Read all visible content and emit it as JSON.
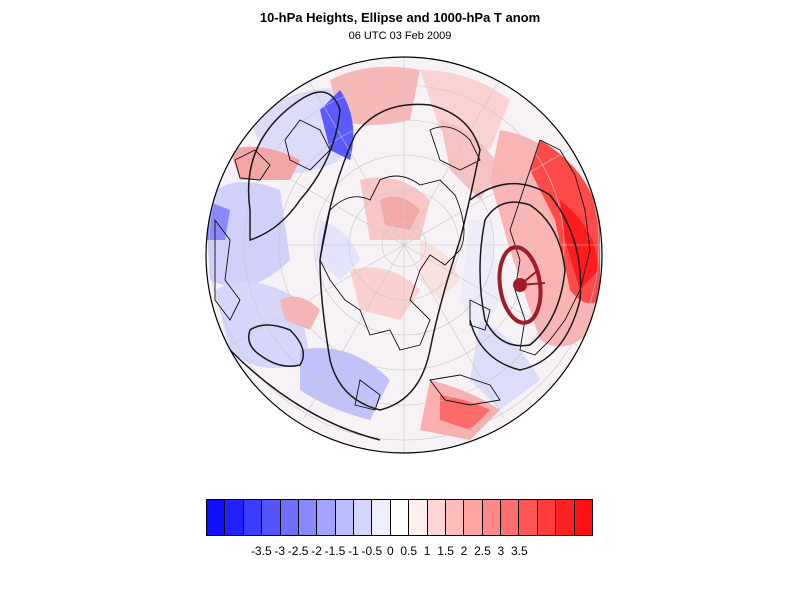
{
  "title": "10-hPa Heights, Ellipse and 1000-hPa T anom",
  "subtitle": "06 UTC 03 Feb 2009",
  "colorbar": {
    "labels": [
      "-3.5",
      "-3",
      "-2.5",
      "-2",
      "-1.5",
      "-1",
      "-0.5",
      "0",
      "0.5",
      "1",
      "1.5",
      "2",
      "2.5",
      "3",
      "3.5"
    ],
    "colors": [
      "#1010ff",
      "#2222ff",
      "#3c3cff",
      "#5555ff",
      "#6f6fff",
      "#8888ff",
      "#a2a2ff",
      "#bbbbff",
      "#d5d5ff",
      "#eeeeff",
      "#ffffff",
      "#ffeeee",
      "#ffd5d5",
      "#ffbbbb",
      "#ffa2a2",
      "#ff8888",
      "#ff6f6f",
      "#ff5555",
      "#ff3c3c",
      "#ff2222",
      "#ff1010"
    ]
  },
  "map": {
    "projection": "orthographic-north-polar",
    "field": "1000-hPa temperature anomaly",
    "contours": "10-hPa geopotential heights",
    "ellipse_color": "#a01c28"
  }
}
